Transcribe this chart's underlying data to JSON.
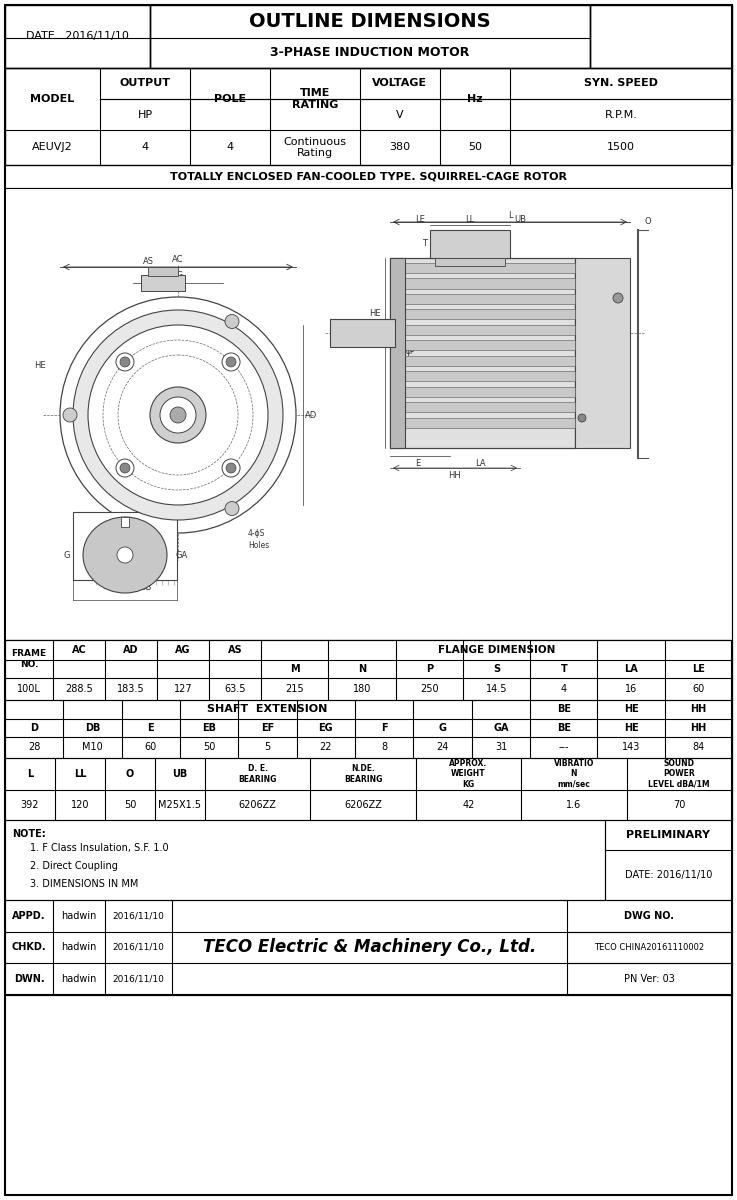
{
  "title": "OUTLINE DIMENSIONS",
  "subtitle": "3-PHASE INDUCTION MOTOR",
  "date": "2016/11/10",
  "enclosed_type": "TOTALLY ENCLOSED FAN-COOLED TYPE. SQUIRREL-CAGE ROTOR",
  "model": "AEUVJ2",
  "hp": "4",
  "pole": "4",
  "time_rating": "Continuous\nRating",
  "voltage": "380",
  "hz": "50",
  "syn_speed": "1500",
  "table1_data": [
    "100L",
    "288.5",
    "183.5",
    "127",
    "63.5",
    "215",
    "180",
    "250",
    "14.5",
    "4",
    "16",
    "60"
  ],
  "table2_data": [
    "28",
    "M10",
    "60",
    "50",
    "5",
    "22",
    "8",
    "24",
    "31",
    "---",
    "143",
    "84"
  ],
  "table3_data": [
    "392",
    "120",
    "50",
    "M25X1.5",
    "6206ZZ",
    "6206ZZ",
    "42",
    "1.6",
    "70"
  ],
  "notes": [
    "1. F Class Insulation, S.F. 1.0",
    "2. Direct Coupling",
    "3. DIMENSIONS IN MM"
  ],
  "preliminary": "PRELIMINARY",
  "prelim_date": "DATE: 2016/11/10",
  "appd": "APPD.",
  "chkd": "CHKD.",
  "dwn": "DWN.",
  "hadwin": "hadwin",
  "date_val": "2016/11/10",
  "teco_name": "TECO Electric & Machinery Co., Ltd.",
  "dwg_no": "DWG NO.",
  "dwg_no_val": "TECO CHINA20161110002",
  "pn_ver": "PN Ver: 03"
}
